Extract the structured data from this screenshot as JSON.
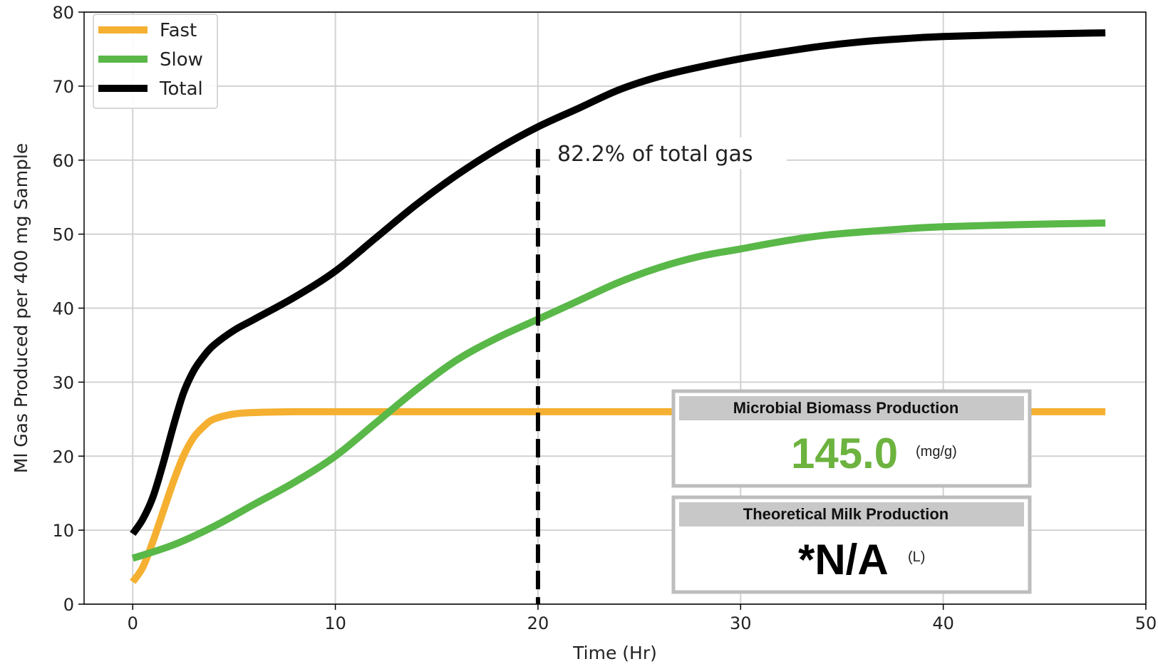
{
  "chart_data": {
    "type": "line",
    "xlabel": "Time (Hr)",
    "ylabel": "Ml Gas Produced per 400 mg Sample",
    "xlim": [
      -2.4,
      50
    ],
    "ylim": [
      0,
      80
    ],
    "xticks": [
      0,
      10,
      20,
      30,
      40,
      50
    ],
    "yticks": [
      0,
      10,
      20,
      30,
      40,
      50,
      60,
      70,
      80
    ],
    "grid": true,
    "legend_position": "top-left",
    "series": [
      {
        "name": "Fast",
        "color": "#f5b031",
        "x": [
          0,
          0.5,
          1,
          1.5,
          2,
          2.5,
          3,
          3.5,
          4,
          5,
          6,
          8,
          10,
          15,
          20,
          30,
          40,
          48
        ],
        "y": [
          3,
          5,
          8.5,
          12.5,
          16.5,
          20,
          22.5,
          24,
          25,
          25.7,
          25.9,
          26,
          26,
          26,
          26,
          26,
          26,
          26
        ]
      },
      {
        "name": "Slow",
        "color": "#59b848",
        "x": [
          0,
          2,
          4,
          6,
          8,
          10,
          12,
          14,
          16,
          18,
          20,
          22,
          24,
          26,
          28,
          30,
          32,
          34,
          36,
          38,
          40,
          44,
          48
        ],
        "y": [
          6.2,
          8,
          10.5,
          13.5,
          16.5,
          20,
          24.5,
          29,
          33,
          36,
          38.5,
          41,
          43.5,
          45.5,
          47,
          48,
          49,
          49.8,
          50.3,
          50.7,
          51,
          51.3,
          51.5
        ]
      },
      {
        "name": "Total",
        "color": "#000000",
        "x": [
          0,
          0.5,
          1,
          1.5,
          2,
          2.5,
          3,
          3.5,
          4,
          5,
          6,
          8,
          10,
          12,
          14,
          16,
          18,
          20,
          22,
          24,
          26,
          28,
          30,
          32,
          34,
          36,
          38,
          40,
          44,
          48
        ],
        "y": [
          9.5,
          11.5,
          14.5,
          19,
          24,
          28.5,
          31.5,
          33.5,
          35,
          37,
          38.5,
          41.5,
          45,
          49.5,
          54,
          58,
          61.5,
          64.5,
          67,
          69.5,
          71.3,
          72.6,
          73.7,
          74.6,
          75.4,
          76,
          76.4,
          76.7,
          77,
          77.2
        ]
      }
    ],
    "annotations": [
      {
        "type": "vline",
        "x": 20,
        "style": "dashed",
        "color": "#000000",
        "text": "82.2% of total gas"
      }
    ]
  },
  "info_boxes": [
    {
      "title": "Microbial Biomass Production",
      "value": "145.0",
      "unit": "(mg/g)",
      "value_color": "#6db33f"
    },
    {
      "title": "Theoretical Milk Production",
      "value": "*N/A",
      "unit": "(L)",
      "value_color": "#000000"
    }
  ]
}
